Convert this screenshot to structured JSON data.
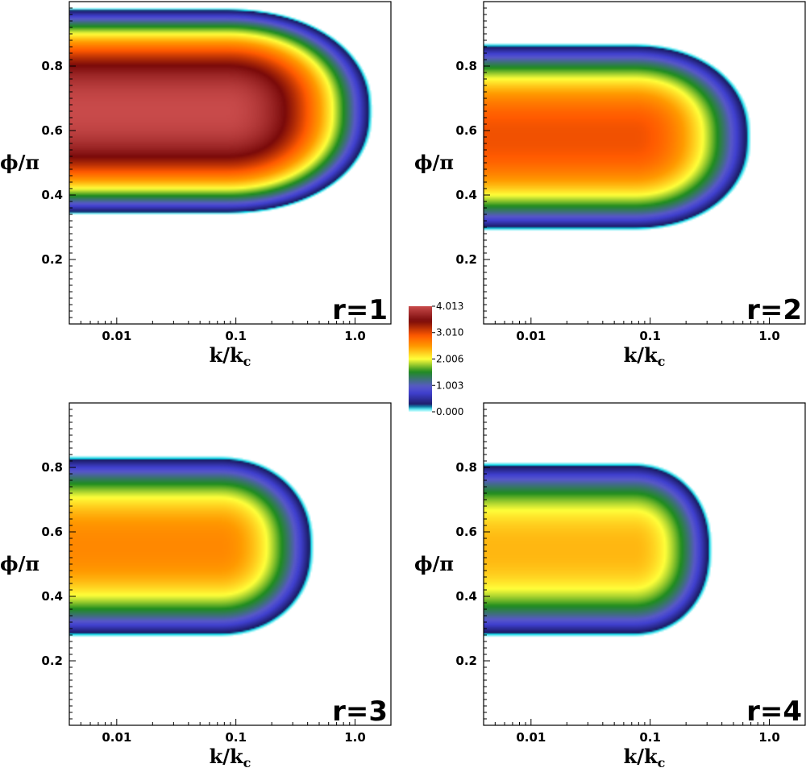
{
  "chart_data": [
    {
      "type": "heatmap",
      "panel_label": "r=1",
      "xlabel": "k/k_c",
      "ylabel": "ϕ/π",
      "xscale": "log",
      "xticks": [
        0.01,
        0.1,
        1.0
      ],
      "xtick_labels": [
        "0.01",
        "0.1",
        "1.0"
      ],
      "yticks": [
        0.2,
        0.4,
        0.6,
        0.8
      ],
      "ytick_labels": [
        "0.2",
        "0.4",
        "0.6",
        "0.8"
      ],
      "xlim": [
        0.004,
        2.0
      ],
      "ylim": [
        0.0,
        1.0
      ],
      "field": {
        "peak": 4.013,
        "phi_center": 0.66,
        "phi_halfwidth": 0.3,
        "k_cutoff": 1.4,
        "plateau_k": 0.08
      }
    },
    {
      "type": "heatmap",
      "panel_label": "r=2",
      "xlabel": "k/k_c",
      "ylabel": "ϕ/π",
      "xscale": "log",
      "xticks": [
        0.01,
        0.1,
        1.0
      ],
      "xtick_labels": [
        "0.01",
        "0.1",
        "1.0"
      ],
      "yticks": [
        0.2,
        0.4,
        0.6,
        0.8
      ],
      "ytick_labels": [
        "0.2",
        "0.4",
        "0.6",
        "0.8"
      ],
      "xlim": [
        0.004,
        2.0
      ],
      "ylim": [
        0.0,
        1.0
      ],
      "field": {
        "peak": 2.95,
        "phi_center": 0.58,
        "phi_halfwidth": 0.27,
        "k_cutoff": 0.7,
        "plateau_k": 0.07
      }
    },
    {
      "type": "heatmap",
      "panel_label": "r=3",
      "xlabel": "k/k_c",
      "ylabel": "ϕ/π",
      "xscale": "log",
      "xticks": [
        0.01,
        0.1,
        1.0
      ],
      "xtick_labels": [
        "0.01",
        "0.1",
        "1.0"
      ],
      "yticks": [
        0.2,
        0.4,
        0.6,
        0.8
      ],
      "ytick_labels": [
        "0.2",
        "0.4",
        "0.6",
        "0.8"
      ],
      "xlim": [
        0.004,
        2.0
      ],
      "ylim": [
        0.0,
        1.0
      ],
      "field": {
        "peak": 2.6,
        "phi_center": 0.555,
        "phi_halfwidth": 0.26,
        "k_cutoff": 0.45,
        "plateau_k": 0.07
      }
    },
    {
      "type": "heatmap",
      "panel_label": "r=4",
      "xlabel": "k/k_c",
      "ylabel": "ϕ/π",
      "xscale": "log",
      "xticks": [
        0.01,
        0.1,
        1.0
      ],
      "xtick_labels": [
        "0.01",
        "0.1",
        "1.0"
      ],
      "yticks": [
        0.2,
        0.4,
        0.6,
        0.8
      ],
      "ytick_labels": [
        "0.2",
        "0.4",
        "0.6",
        "0.8"
      ],
      "xlim": [
        0.004,
        2.0
      ],
      "ylim": [
        0.0,
        1.0
      ],
      "field": {
        "peak": 2.35,
        "phi_center": 0.545,
        "phi_halfwidth": 0.25,
        "k_cutoff": 0.33,
        "plateau_k": 0.07
      }
    }
  ],
  "colorbar": {
    "min": 0.0,
    "max": 4.013,
    "tick_values": [
      4.013,
      3.01,
      2.006,
      1.003,
      0.0
    ],
    "tick_labels": [
      "4.013",
      "3.010",
      "2.006",
      "1.003",
      "0.000"
    ],
    "colors": [
      "#e0ffff",
      "#0bd6e6",
      "#1a1a60",
      "#4040d0",
      "#5858c8",
      "#1f8c1f",
      "#ffff3a",
      "#ff9a00",
      "#ff5a00",
      "#7a0a0a",
      "#c84a4a"
    ]
  }
}
